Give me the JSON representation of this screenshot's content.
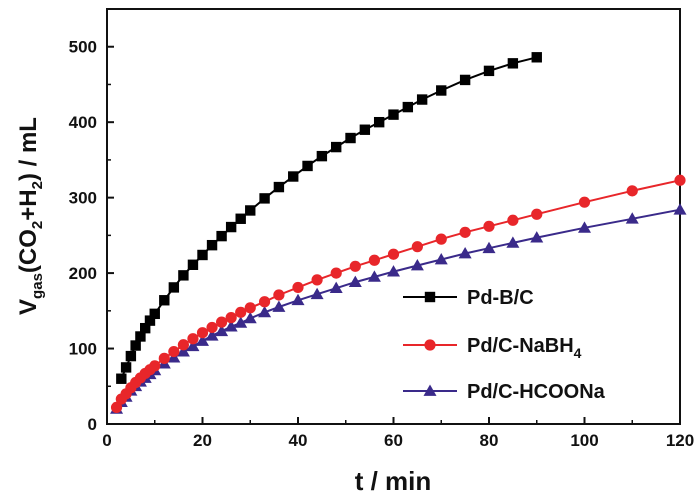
{
  "chart_data": {
    "type": "line",
    "xlabel": "t / min",
    "ylabel": {
      "main": "V",
      "main_sub": "gas",
      "part1": "(CO",
      "sub1": "2",
      "part2": "+H",
      "sub2": "2",
      "part3": ") / mL"
    },
    "xlim": [
      0,
      120
    ],
    "ylim": [
      0,
      550
    ],
    "xticks": [
      0,
      20,
      40,
      60,
      80,
      100,
      120
    ],
    "yticks": [
      0,
      100,
      200,
      300,
      400,
      500
    ],
    "grid": false,
    "legend_position": "bottom-right",
    "series": [
      {
        "name": "Pd-B/C",
        "legend_main": "Pd-B/C",
        "legend_sub": "",
        "legend_tail": "",
        "color": "#000000",
        "marker": "square",
        "x": [
          3,
          4,
          5,
          6,
          7,
          8,
          9,
          10,
          12,
          14,
          16,
          18,
          20,
          22,
          24,
          26,
          28,
          30,
          33,
          36,
          39,
          42,
          45,
          48,
          51,
          54,
          57,
          60,
          63,
          66,
          70,
          75,
          80,
          85,
          90
        ],
        "y": [
          60,
          75,
          90,
          104,
          116,
          127,
          137,
          146,
          164,
          181,
          197,
          211,
          224,
          237,
          249,
          261,
          272,
          283,
          299,
          314,
          328,
          342,
          355,
          367,
          379,
          390,
          400,
          410,
          420,
          430,
          442,
          456,
          468,
          478,
          486
        ]
      },
      {
        "name": "Pd/C-NaBH4",
        "legend_main": "Pd/C-NaBH",
        "legend_sub": "4",
        "legend_tail": "",
        "color": "#e8262a",
        "marker": "circle",
        "x": [
          2,
          3,
          4,
          5,
          6,
          7,
          8,
          9,
          10,
          12,
          14,
          16,
          18,
          20,
          22,
          24,
          26,
          28,
          30,
          33,
          36,
          40,
          44,
          48,
          52,
          56,
          60,
          65,
          70,
          75,
          80,
          85,
          90,
          100,
          110,
          120
        ],
        "y": [
          22,
          33,
          40,
          48,
          55,
          61,
          67,
          72,
          77,
          87,
          96,
          105,
          113,
          121,
          128,
          135,
          141,
          148,
          154,
          162,
          171,
          181,
          191,
          200,
          209,
          217,
          225,
          235,
          245,
          254,
          262,
          270,
          278,
          294,
          309,
          323
        ]
      },
      {
        "name": "Pd/C-HCOONa",
        "legend_main": "Pd/C-HCOONa",
        "legend_sub": "",
        "legend_tail": "",
        "color": "#3a2a8a",
        "marker": "triangle",
        "x": [
          2,
          3,
          4,
          5,
          6,
          7,
          8,
          9,
          10,
          12,
          14,
          16,
          18,
          20,
          22,
          24,
          26,
          28,
          30,
          33,
          36,
          40,
          44,
          48,
          52,
          56,
          60,
          65,
          70,
          75,
          80,
          85,
          90,
          100,
          110,
          120
        ],
        "y": [
          20,
          29,
          36,
          44,
          50,
          56,
          61,
          66,
          71,
          80,
          88,
          96,
          103,
          110,
          117,
          123,
          129,
          134,
          140,
          148,
          155,
          164,
          172,
          180,
          188,
          195,
          202,
          210,
          218,
          226,
          233,
          240,
          247,
          260,
          272,
          284
        ]
      }
    ]
  }
}
